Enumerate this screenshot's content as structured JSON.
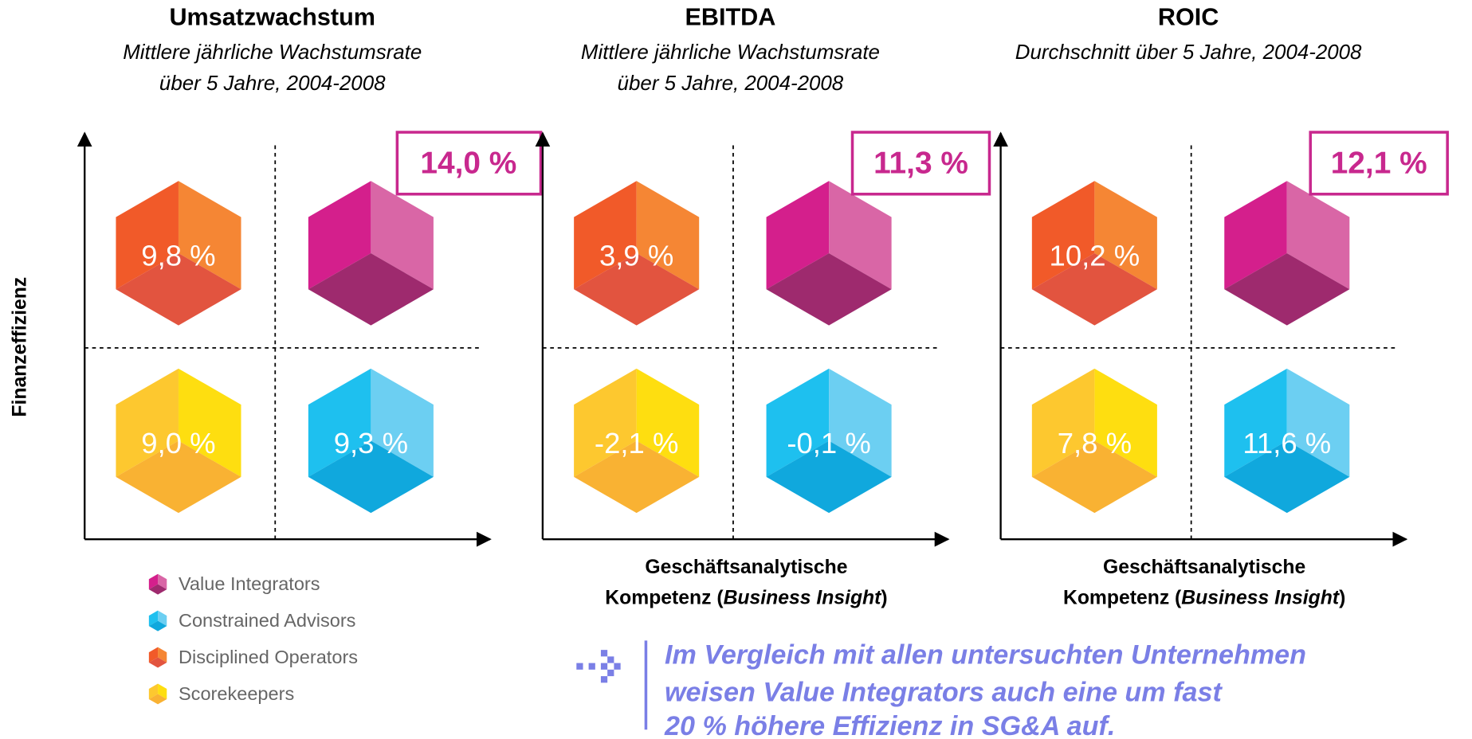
{
  "y_axis_label": "Finanzeffizienz",
  "x_axis_label": {
    "line1": "Geschäftsanalytische",
    "line2_start": "Kompetenz (",
    "line2_italic": "Business Insight",
    "line2_end": ")"
  },
  "panels": [
    {
      "title": "Umsatzwachstum",
      "subtitle": [
        "Mittlere jährliche Wachstumsrate",
        "über 5 Jahre, 2004-2008"
      ],
      "top_left": "9,8 %",
      "top_right": "14,0 %",
      "bottom_left": "9,0 %",
      "bottom_right": "9,3 %"
    },
    {
      "title": "EBITDA",
      "subtitle": [
        "Mittlere jährliche Wachstumsrate",
        "über 5 Jahre, 2004-2008"
      ],
      "top_left": "3,9 %",
      "top_right": "11,3 %",
      "bottom_left": "-2,1 %",
      "bottom_right": "-0,1 %"
    },
    {
      "title": "ROIC",
      "subtitle": [
        "Durchschnitt über 5 Jahre, 2004-2008"
      ],
      "top_left": "10,2 %",
      "top_right": "12,1 %",
      "bottom_left": "7,8 %",
      "bottom_right": "11,6 %"
    }
  ],
  "legend": [
    "Value Integrators",
    "Constrained Advisors",
    "Disciplined Operators",
    "Scorekeepers"
  ],
  "note": [
    "Im Vergleich mit allen untersuchten Unternehmen",
    "weisen Value Integrators auch eine um fast",
    "20 % höhere Effizienz in SG&A auf."
  ]
}
